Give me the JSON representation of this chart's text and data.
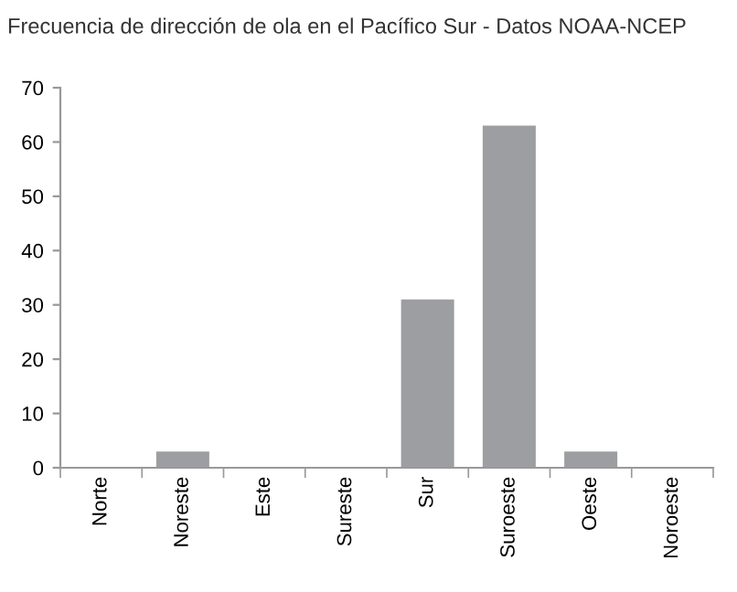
{
  "chart_data": {
    "type": "bar",
    "title": "Frecuencia de dirección de ola en el Pacífico Sur - Datos NOAA-NCEP",
    "categories": [
      "Norte",
      "Noreste",
      "Este",
      "Sureste",
      "Sur",
      "Suroeste",
      "Oeste",
      "Noroeste"
    ],
    "values": [
      0,
      3,
      0,
      0,
      31,
      63,
      3,
      0
    ],
    "color": "#9d9ea2",
    "ylim": [
      0,
      70
    ],
    "yticks": [
      0,
      10,
      20,
      30,
      40,
      50,
      60,
      70
    ],
    "grid": false
  }
}
